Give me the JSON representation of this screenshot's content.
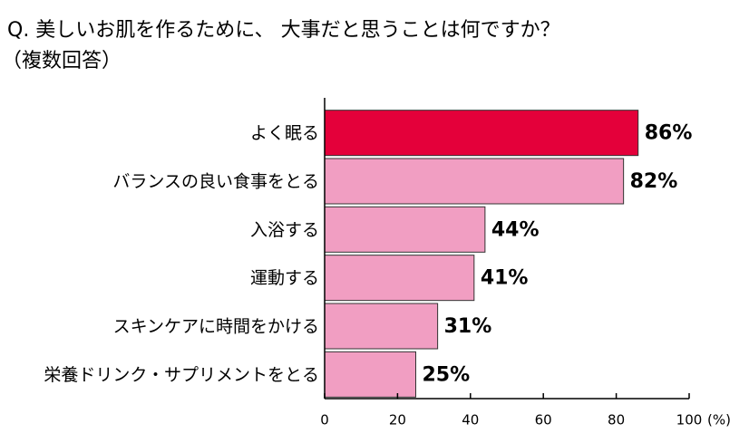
{
  "chart_data": {
    "type": "barh",
    "title": "Q. 美しいお肌を作るために、 大事だと思うことは何ですか？",
    "subtitle": "（複数回答）",
    "categories": [
      "よく眠る",
      "バランスの良い食事をとる",
      "入浴する",
      "運動する",
      "スキンケアに時間をかける",
      "栄養ドリンク・サプリメントをとる"
    ],
    "values": [
      86,
      82,
      44,
      41,
      31,
      25
    ],
    "value_labels": [
      "86%",
      "82%",
      "44%",
      "41%",
      "31%",
      "25%"
    ],
    "colors": [
      "#e4003a",
      "#f19ec2",
      "#f19ec2",
      "#f19ec2",
      "#f19ec2",
      "#f19ec2"
    ],
    "xlim": [
      0,
      100
    ],
    "xticks": [
      0,
      20,
      40,
      60,
      80,
      100
    ],
    "x_unit": "(%)"
  }
}
